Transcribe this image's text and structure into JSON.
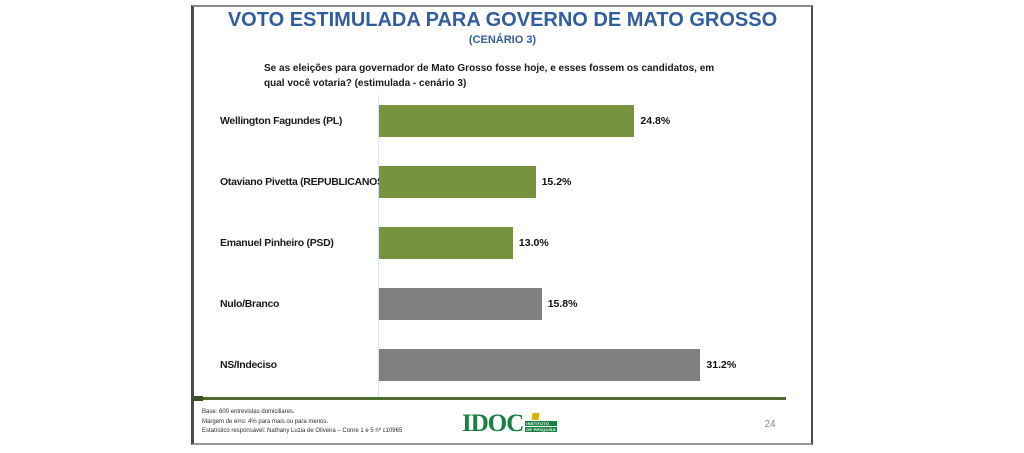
{
  "slide": {
    "title": "VOTO ESTIMULADA PARA GOVERNO DE MATO GROSSO",
    "subtitle": "(CENÁRIO 3)",
    "question": "Se as eleições para governador de Mato Grosso fosse hoje, e esses fossem os candidatos, em qual você votaria? (estimulada - cenário 3)"
  },
  "chart_data": {
    "type": "bar",
    "orientation": "horizontal",
    "title": "VOTO ESTIMULADA PARA GOVERNO DE MATO GROSSO (CENÁRIO 3)",
    "categories": [
      "Wellington Fagundes (PL)",
      "Otaviano Pivetta (REPUBLICANOS)",
      "Emanuel Pinheiro (PSD)",
      "Nulo/Branco",
      "NS/Indeciso"
    ],
    "values": [
      24.8,
      15.2,
      13.0,
      15.8,
      31.2
    ],
    "value_labels": [
      "24.8%",
      "15.2%",
      "13.0%",
      "15.8%",
      "31.2%"
    ],
    "bar_colors": [
      "#78933D",
      "#78933D",
      "#78933D",
      "#808080",
      "#808080"
    ],
    "xlabel": "",
    "ylabel": "",
    "xlim": [
      0,
      40
    ],
    "grid": false,
    "legend": "none"
  },
  "footer": {
    "note1": "Base: 600 entrevistas domiciliares.",
    "note2": "Margem de erro: 4% para mais ou para menos.",
    "note3": "Estatístico responsável: Nathany Luzia de Oliveira – Conre 1 e 5 nº c10965",
    "logo_text": "IDOC",
    "logo_tagline_line1": "INSTITUTO",
    "logo_tagline_line2": "DE PESQUISA",
    "page_number": "24"
  },
  "colors": {
    "title_blue": "#315DA1",
    "bar_green": "#78933D",
    "bar_gray": "#808080",
    "divider_green": "#4E6B30",
    "logo_green": "#17813F",
    "logo_yellow": "#D9B310"
  }
}
